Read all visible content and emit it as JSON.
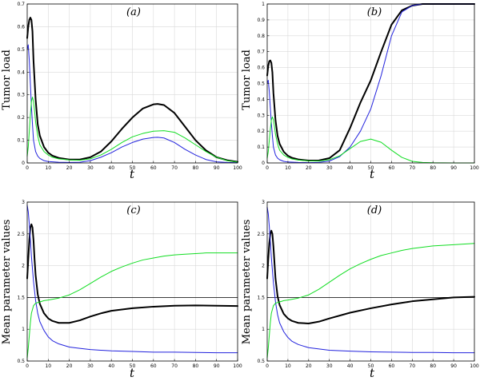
{
  "chart_data": [
    {
      "type": "line",
      "title": "(a)",
      "xlabel": "t",
      "ylabel": "Tumor load",
      "xlim": [
        0,
        100
      ],
      "ylim": [
        0,
        0.7
      ],
      "xticks": [
        0,
        10,
        20,
        30,
        40,
        50,
        60,
        70,
        80,
        90,
        100
      ],
      "yticks": [
        0,
        0.1,
        0.2,
        0.3,
        0.4,
        0.5,
        0.6,
        0.7
      ],
      "xtick_labels": [
        "0",
        "10",
        "20",
        "30",
        "40",
        "50",
        "60",
        "70",
        "80",
        "90",
        "100"
      ],
      "ytick_labels": [
        "0",
        "0.1",
        "0.2",
        "0.3",
        "0.4",
        "0.5",
        "0.6",
        "0.7"
      ],
      "grid": true,
      "series": [
        {
          "name": "total",
          "color": "#000000",
          "width": 2,
          "x": [
            0,
            0.5,
            1,
            1.5,
            2,
            2.5,
            3,
            4,
            5,
            6,
            8,
            10,
            12,
            15,
            20,
            25,
            30,
            35,
            40,
            45,
            50,
            55,
            60,
            62,
            65,
            70,
            75,
            80,
            85,
            90,
            95,
            100
          ],
          "y": [
            0.55,
            0.6,
            0.63,
            0.64,
            0.63,
            0.58,
            0.45,
            0.28,
            0.17,
            0.12,
            0.07,
            0.045,
            0.032,
            0.022,
            0.015,
            0.015,
            0.025,
            0.05,
            0.095,
            0.15,
            0.2,
            0.24,
            0.258,
            0.26,
            0.255,
            0.22,
            0.16,
            0.1,
            0.055,
            0.025,
            0.012,
            0.005
          ]
        },
        {
          "name": "blue",
          "color": "#2222dd",
          "width": 1,
          "x": [
            0,
            0.5,
            1,
            1.5,
            2,
            2.5,
            3,
            4,
            5,
            6,
            8,
            10,
            15,
            20,
            25,
            30,
            35,
            40,
            45,
            50,
            55,
            60,
            62,
            65,
            70,
            75,
            80,
            85,
            90,
            95,
            100
          ],
          "y": [
            0.5,
            0.52,
            0.45,
            0.35,
            0.25,
            0.17,
            0.1,
            0.05,
            0.03,
            0.02,
            0.01,
            0.006,
            0.003,
            0.002,
            0.003,
            0.01,
            0.025,
            0.045,
            0.07,
            0.09,
            0.105,
            0.112,
            0.113,
            0.11,
            0.09,
            0.06,
            0.035,
            0.015,
            0.005,
            0.002,
            0.001
          ]
        },
        {
          "name": "green",
          "color": "#11dd22",
          "width": 1,
          "x": [
            0,
            0.5,
            1,
            1.5,
            2,
            2.5,
            3,
            3.5,
            4,
            5,
            6,
            8,
            10,
            12,
            15,
            20,
            25,
            30,
            35,
            40,
            45,
            50,
            55,
            60,
            65,
            70,
            75,
            80,
            85,
            90,
            95,
            100
          ],
          "y": [
            0.03,
            0.07,
            0.14,
            0.21,
            0.27,
            0.29,
            0.27,
            0.23,
            0.18,
            0.12,
            0.08,
            0.05,
            0.035,
            0.025,
            0.018,
            0.013,
            0.012,
            0.018,
            0.035,
            0.06,
            0.09,
            0.115,
            0.13,
            0.14,
            0.142,
            0.135,
            0.11,
            0.08,
            0.05,
            0.025,
            0.01,
            0.004
          ]
        }
      ]
    },
    {
      "type": "line",
      "title": "(b)",
      "xlabel": "t",
      "ylabel": "Tumor load",
      "xlim": [
        0,
        100
      ],
      "ylim": [
        0,
        1
      ],
      "xticks": [
        0,
        10,
        20,
        30,
        40,
        50,
        60,
        70,
        80,
        90,
        100
      ],
      "yticks": [
        0,
        0.1,
        0.2,
        0.3,
        0.4,
        0.5,
        0.6,
        0.7,
        0.8,
        0.9,
        1
      ],
      "xtick_labels": [
        "0",
        "10",
        "20",
        "30",
        "40",
        "50",
        "60",
        "70",
        "80",
        "90",
        "100"
      ],
      "ytick_labels": [
        "0",
        "0.1",
        "0.2",
        "0.3",
        "0.4",
        "0.5",
        "0.6",
        "0.7",
        "0.8",
        "0.9",
        "1"
      ],
      "grid": true,
      "series": [
        {
          "name": "total",
          "color": "#000000",
          "width": 2,
          "x": [
            0,
            0.5,
            1,
            1.5,
            2,
            2.5,
            3,
            4,
            5,
            6,
            8,
            10,
            12,
            15,
            20,
            25,
            30,
            35,
            40,
            45,
            50,
            55,
            60,
            65,
            70,
            75,
            80,
            90,
            100
          ],
          "y": [
            0.55,
            0.61,
            0.64,
            0.645,
            0.63,
            0.57,
            0.44,
            0.27,
            0.17,
            0.12,
            0.07,
            0.045,
            0.032,
            0.022,
            0.015,
            0.016,
            0.03,
            0.08,
            0.22,
            0.38,
            0.52,
            0.7,
            0.87,
            0.96,
            0.99,
            1.0,
            1.0,
            1.0,
            1.0
          ]
        },
        {
          "name": "blue",
          "color": "#2222dd",
          "width": 1,
          "x": [
            0,
            0.5,
            1,
            1.5,
            2,
            2.5,
            3,
            4,
            5,
            6,
            8,
            10,
            15,
            20,
            25,
            30,
            35,
            40,
            45,
            50,
            55,
            60,
            65,
            70,
            75,
            80,
            90,
            100
          ],
          "y": [
            0.5,
            0.52,
            0.45,
            0.35,
            0.25,
            0.17,
            0.1,
            0.05,
            0.03,
            0.02,
            0.01,
            0.006,
            0.003,
            0.002,
            0.004,
            0.012,
            0.04,
            0.1,
            0.2,
            0.34,
            0.55,
            0.8,
            0.95,
            0.99,
            1.0,
            1.0,
            1.0,
            1.0
          ]
        },
        {
          "name": "green",
          "color": "#11dd22",
          "width": 1,
          "x": [
            0,
            0.5,
            1,
            1.5,
            2,
            2.5,
            3,
            3.5,
            4,
            5,
            6,
            8,
            10,
            12,
            15,
            20,
            25,
            30,
            35,
            40,
            45,
            50,
            55,
            60,
            65,
            70,
            75,
            80,
            90,
            100
          ],
          "y": [
            0.03,
            0.07,
            0.14,
            0.21,
            0.27,
            0.29,
            0.27,
            0.23,
            0.18,
            0.12,
            0.08,
            0.05,
            0.035,
            0.025,
            0.018,
            0.013,
            0.012,
            0.02,
            0.045,
            0.09,
            0.135,
            0.15,
            0.13,
            0.08,
            0.035,
            0.01,
            0.003,
            0.001,
            0,
            0
          ]
        }
      ]
    },
    {
      "type": "line",
      "title": "(c)",
      "xlabel": "t",
      "ylabel": "Mean parameter values",
      "xlim": [
        0,
        100
      ],
      "ylim": [
        0.5,
        3
      ],
      "xticks": [
        0,
        10,
        20,
        30,
        40,
        50,
        60,
        70,
        80,
        90,
        100
      ],
      "yticks": [
        0.5,
        1,
        1.5,
        2,
        2.5,
        3
      ],
      "xtick_labels": [
        "0",
        "10",
        "20",
        "30",
        "40",
        "50",
        "60",
        "70",
        "80",
        "90",
        "100"
      ],
      "ytick_labels": [
        "0.5",
        "1",
        "1.5",
        "2",
        "2.5",
        "3"
      ],
      "grid": true,
      "series": [
        {
          "name": "reference",
          "color": "#000000",
          "width": 0.8,
          "x": [
            0,
            100
          ],
          "y": [
            1.5,
            1.5
          ]
        },
        {
          "name": "black",
          "color": "#000000",
          "width": 2,
          "x": [
            0,
            0.5,
            1,
            1.5,
            2,
            2.5,
            3,
            3.5,
            4,
            5,
            6,
            8,
            10,
            12,
            15,
            20,
            25,
            30,
            35,
            40,
            50,
            60,
            70,
            80,
            90,
            100
          ],
          "y": [
            1.8,
            2.1,
            2.4,
            2.6,
            2.65,
            2.6,
            2.4,
            2.1,
            1.85,
            1.55,
            1.4,
            1.25,
            1.17,
            1.13,
            1.1,
            1.1,
            1.14,
            1.2,
            1.25,
            1.29,
            1.33,
            1.355,
            1.37,
            1.375,
            1.37,
            1.365
          ]
        },
        {
          "name": "blue",
          "color": "#2222dd",
          "width": 1,
          "x": [
            0,
            0.5,
            1,
            1.5,
            2,
            3,
            4,
            5,
            6,
            8,
            10,
            12,
            15,
            20,
            25,
            30,
            40,
            50,
            60,
            70,
            80,
            90,
            100
          ],
          "y": [
            2.95,
            2.85,
            2.65,
            2.4,
            2.15,
            1.75,
            1.45,
            1.25,
            1.12,
            0.98,
            0.88,
            0.82,
            0.77,
            0.72,
            0.7,
            0.68,
            0.66,
            0.65,
            0.64,
            0.64,
            0.635,
            0.63,
            0.63
          ]
        },
        {
          "name": "green",
          "color": "#11dd22",
          "width": 1,
          "x": [
            0,
            0.5,
            1,
            1.5,
            2,
            3,
            4,
            5,
            6,
            8,
            10,
            15,
            20,
            25,
            30,
            35,
            40,
            45,
            50,
            55,
            60,
            65,
            70,
            75,
            80,
            85,
            90,
            100
          ],
          "y": [
            0.55,
            0.7,
            0.9,
            1.1,
            1.25,
            1.37,
            1.41,
            1.42,
            1.43,
            1.45,
            1.46,
            1.49,
            1.54,
            1.62,
            1.72,
            1.82,
            1.91,
            1.98,
            2.04,
            2.09,
            2.12,
            2.15,
            2.17,
            2.18,
            2.19,
            2.2,
            2.2,
            2.2
          ]
        }
      ]
    },
    {
      "type": "line",
      "title": "(d)",
      "xlabel": "t",
      "ylabel": "Mean parameter values",
      "xlim": [
        0,
        100
      ],
      "ylim": [
        0.5,
        3
      ],
      "xticks": [
        0,
        10,
        20,
        30,
        40,
        50,
        60,
        70,
        80,
        90,
        100
      ],
      "yticks": [
        0.5,
        1,
        1.5,
        2,
        2.5,
        3
      ],
      "xtick_labels": [
        "0",
        "10",
        "20",
        "30",
        "40",
        "50",
        "60",
        "70",
        "80",
        "90",
        "100"
      ],
      "ytick_labels": [
        "0.5",
        "1",
        "1.5",
        "2",
        "2.5",
        "3"
      ],
      "grid": true,
      "series": [
        {
          "name": "reference",
          "color": "#000000",
          "width": 0.8,
          "x": [
            0,
            100
          ],
          "y": [
            1.5,
            1.5
          ]
        },
        {
          "name": "black",
          "color": "#000000",
          "width": 2,
          "x": [
            0,
            0.5,
            1,
            1.5,
            2,
            2.5,
            3,
            3.5,
            4,
            5,
            6,
            8,
            10,
            12,
            15,
            20,
            25,
            30,
            40,
            50,
            60,
            70,
            80,
            90,
            100
          ],
          "y": [
            1.8,
            2.1,
            2.35,
            2.5,
            2.55,
            2.5,
            2.3,
            2.05,
            1.8,
            1.52,
            1.38,
            1.24,
            1.17,
            1.13,
            1.1,
            1.09,
            1.12,
            1.17,
            1.26,
            1.33,
            1.39,
            1.44,
            1.47,
            1.5,
            1.51
          ]
        },
        {
          "name": "blue",
          "color": "#2222dd",
          "width": 1,
          "x": [
            0,
            0.5,
            1,
            1.5,
            2,
            3,
            4,
            5,
            6,
            8,
            10,
            12,
            15,
            20,
            25,
            30,
            40,
            50,
            60,
            70,
            80,
            90,
            100
          ],
          "y": [
            2.92,
            2.82,
            2.62,
            2.38,
            2.13,
            1.73,
            1.43,
            1.23,
            1.1,
            0.96,
            0.87,
            0.81,
            0.76,
            0.71,
            0.69,
            0.67,
            0.655,
            0.645,
            0.64,
            0.635,
            0.635,
            0.63,
            0.63
          ]
        },
        {
          "name": "green",
          "color": "#11dd22",
          "width": 1,
          "x": [
            0,
            0.5,
            1,
            1.5,
            2,
            3,
            4,
            5,
            6,
            8,
            10,
            15,
            20,
            25,
            30,
            35,
            40,
            45,
            50,
            55,
            60,
            65,
            70,
            75,
            80,
            85,
            90,
            100
          ],
          "y": [
            0.55,
            0.7,
            0.9,
            1.1,
            1.25,
            1.37,
            1.41,
            1.42,
            1.43,
            1.45,
            1.46,
            1.49,
            1.54,
            1.63,
            1.74,
            1.85,
            1.95,
            2.03,
            2.1,
            2.16,
            2.2,
            2.24,
            2.27,
            2.29,
            2.31,
            2.32,
            2.33,
            2.35
          ]
        }
      ]
    }
  ]
}
